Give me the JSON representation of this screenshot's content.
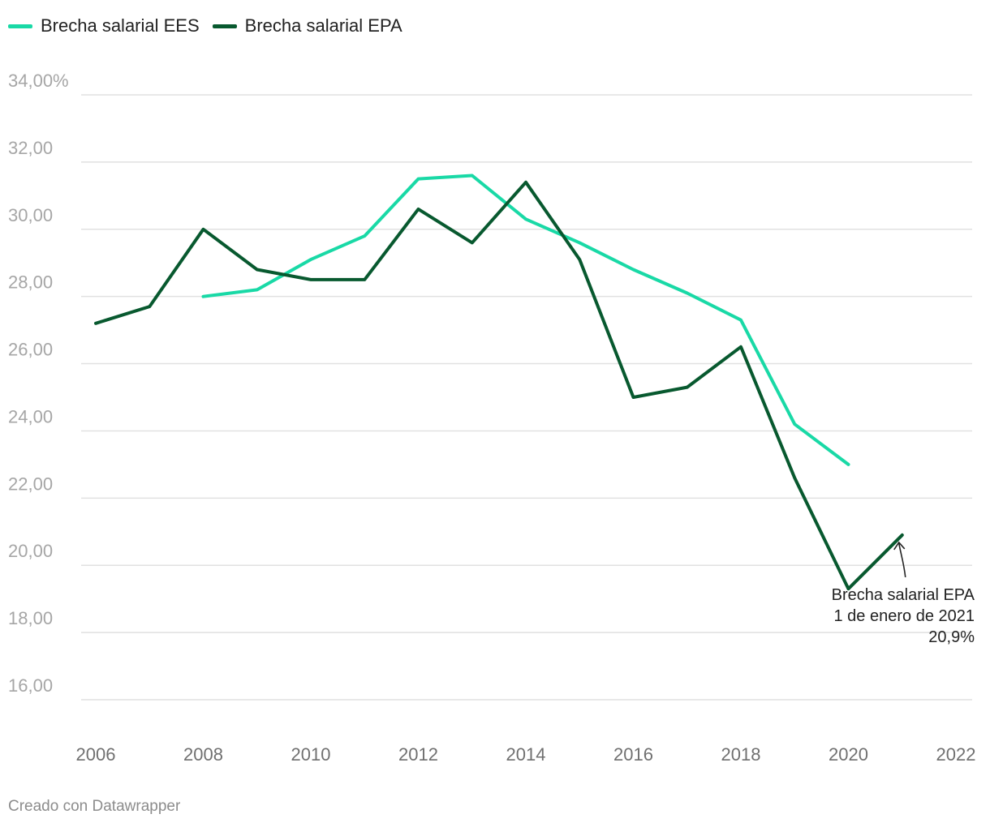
{
  "chart_data": {
    "type": "line",
    "title": "",
    "xlabel": "",
    "ylabel": "",
    "xlim": [
      2006,
      2022
    ],
    "ylim": [
      16,
      34
    ],
    "x_ticks": [
      "2006",
      "2008",
      "2010",
      "2012",
      "2014",
      "2016",
      "2018",
      "2020",
      "2022"
    ],
    "y_ticks": [
      "34,00%",
      "32,00",
      "30,00",
      "28,00",
      "26,00",
      "24,00",
      "22,00",
      "20,00",
      "18,00",
      "16,00"
    ],
    "series": [
      {
        "name": "Brecha salarial EES",
        "color": "#19d9a6",
        "x": [
          2008,
          2009,
          2010,
          2011,
          2012,
          2013,
          2014,
          2015,
          2016,
          2017,
          2018,
          2019,
          2020
        ],
        "values": [
          28.0,
          28.2,
          29.1,
          29.8,
          31.5,
          31.6,
          30.3,
          29.6,
          28.8,
          28.1,
          27.3,
          24.2,
          23.0
        ]
      },
      {
        "name": "Brecha salarial EPA",
        "color": "#08592f",
        "x": [
          2006,
          2007,
          2008,
          2009,
          2010,
          2011,
          2012,
          2013,
          2014,
          2015,
          2016,
          2017,
          2018,
          2019,
          2020,
          2021
        ],
        "values": [
          27.2,
          27.7,
          30.0,
          28.8,
          28.5,
          28.5,
          30.6,
          29.6,
          31.4,
          29.1,
          25.0,
          25.3,
          26.5,
          22.6,
          19.3,
          20.9
        ]
      }
    ],
    "annotation": {
      "target_x": 2021,
      "target_y": 20.9,
      "lines": [
        "Brecha salarial EPA",
        "1 de enero de 2021",
        "20,9%"
      ]
    },
    "legend_position": "top-left",
    "grid": true
  },
  "credit": "Creado con Datawrapper"
}
